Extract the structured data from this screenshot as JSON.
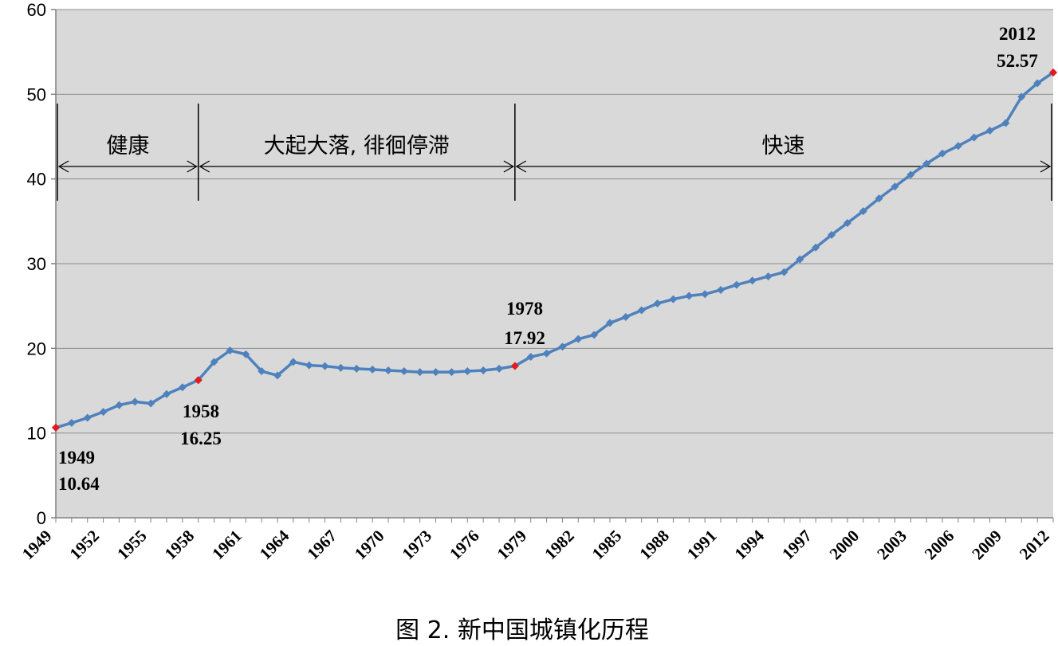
{
  "chart_data": {
    "type": "line",
    "caption": "图 2. 新中国城镇化历程",
    "ylim": [
      0,
      60
    ],
    "yticks": [
      0,
      10,
      20,
      30,
      40,
      50,
      60
    ],
    "xlim": [
      1949,
      2012
    ],
    "xticks": [
      1949,
      1952,
      1955,
      1958,
      1961,
      1964,
      1967,
      1970,
      1973,
      1976,
      1979,
      1982,
      1985,
      1988,
      1991,
      1994,
      1997,
      2000,
      2003,
      2006,
      2009,
      2012
    ],
    "grid": "horizontal",
    "background": "#d9d9d9",
    "line_color": "#4f81bd",
    "highlight_color": "#e41a1c",
    "series": [
      {
        "x": [
          1949,
          1950,
          1951,
          1952,
          1953,
          1954,
          1955,
          1956,
          1957,
          1958,
          1959,
          1960,
          1961,
          1962,
          1963,
          1964,
          1965,
          1966,
          1967,
          1968,
          1969,
          1970,
          1971,
          1972,
          1973,
          1974,
          1975,
          1976,
          1977,
          1978,
          1979,
          1980,
          1981,
          1982,
          1983,
          1984,
          1985,
          1986,
          1987,
          1988,
          1989,
          1990,
          1991,
          1992,
          1993,
          1994,
          1995,
          1996,
          1997,
          1998,
          1999,
          2000,
          2001,
          2002,
          2003,
          2004,
          2005,
          2006,
          2007,
          2008,
          2009,
          2010,
          2011,
          2012
        ],
        "values": [
          10.64,
          11.2,
          11.8,
          12.5,
          13.3,
          13.7,
          13.5,
          14.6,
          15.4,
          16.25,
          18.4,
          19.75,
          19.3,
          17.3,
          16.8,
          18.4,
          18.0,
          17.9,
          17.7,
          17.6,
          17.5,
          17.4,
          17.3,
          17.2,
          17.2,
          17.2,
          17.3,
          17.4,
          17.6,
          17.92,
          19.0,
          19.4,
          20.2,
          21.1,
          21.6,
          23.0,
          23.7,
          24.5,
          25.3,
          25.8,
          26.2,
          26.4,
          26.9,
          27.5,
          28.0,
          28.5,
          29.0,
          30.5,
          31.9,
          33.4,
          34.8,
          36.2,
          37.7,
          39.1,
          40.5,
          41.8,
          43.0,
          43.9,
          44.9,
          45.7,
          46.6,
          49.7,
          51.3,
          52.57
        ]
      }
    ],
    "highlights": [
      {
        "year": 1949,
        "value": 10.64,
        "year_label": "1949",
        "value_label": "10.64"
      },
      {
        "year": 1958,
        "value": 16.25,
        "year_label": "1958",
        "value_label": "16.25"
      },
      {
        "year": 1978,
        "value": 17.92,
        "year_label": "1978",
        "value_label": "17.92"
      },
      {
        "year": 2012,
        "value": 52.57,
        "year_label": "2012",
        "value_label": "52.57"
      }
    ],
    "phases": [
      {
        "label": "健康",
        "from": 1949,
        "to": 1958
      },
      {
        "label": "大起大落, 徘徊停滞",
        "from": 1958,
        "to": 1978
      },
      {
        "label": "快速",
        "from": 1978,
        "to": 2012
      }
    ]
  }
}
